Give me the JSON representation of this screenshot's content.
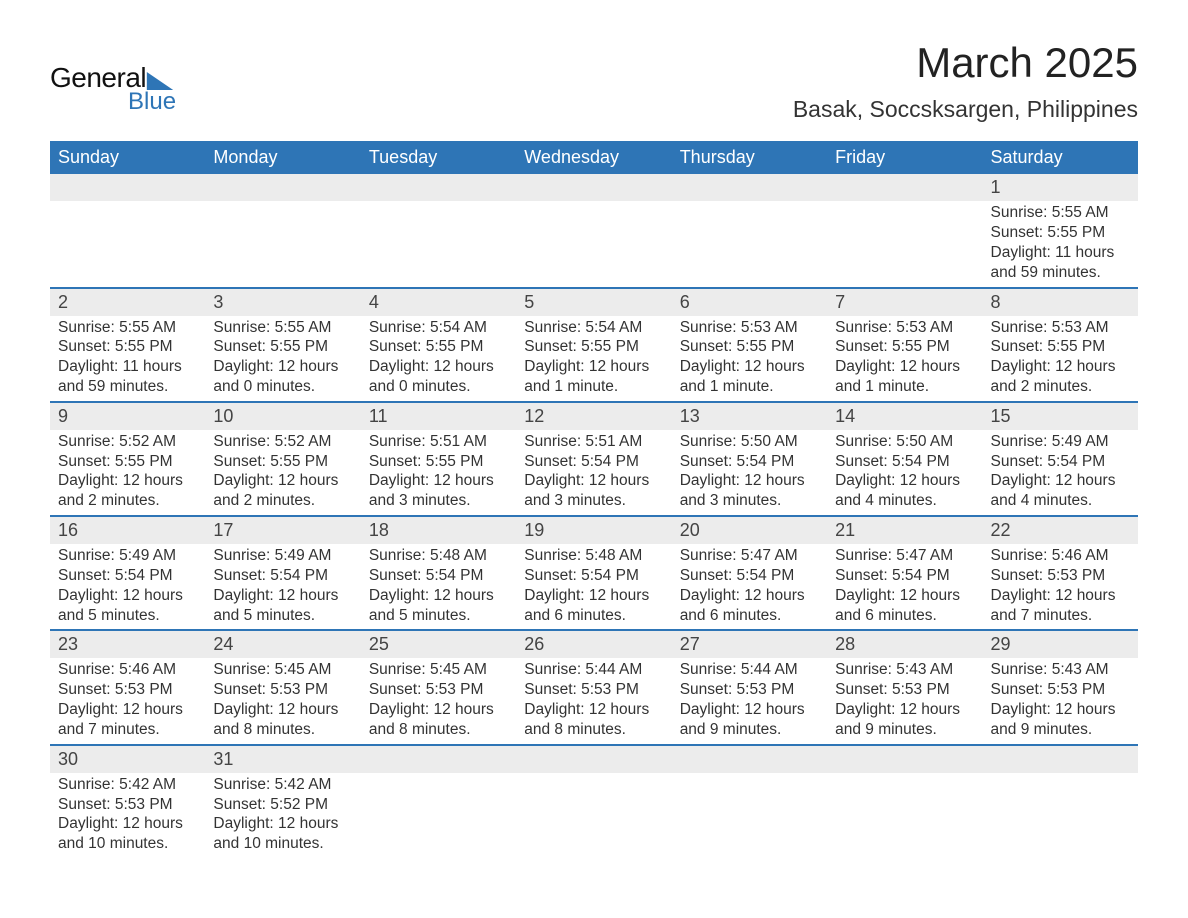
{
  "logo": {
    "top": "General",
    "bottom": "Blue"
  },
  "title": "March 2025",
  "subtitle": "Basak, Soccsksargen, Philippines",
  "colors": {
    "brand_blue": "#2e75b6",
    "header_band_bg": "#ececec",
    "text": "#333333",
    "background": "#ffffff"
  },
  "day_labels": [
    "Sunday",
    "Monday",
    "Tuesday",
    "Wednesday",
    "Thursday",
    "Friday",
    "Saturday"
  ],
  "weeks": [
    [
      null,
      null,
      null,
      null,
      null,
      null,
      {
        "n": "1",
        "sr": "Sunrise: 5:55 AM",
        "ss": "Sunset: 5:55 PM",
        "dl": "Daylight: 11 hours and 59 minutes."
      }
    ],
    [
      {
        "n": "2",
        "sr": "Sunrise: 5:55 AM",
        "ss": "Sunset: 5:55 PM",
        "dl": "Daylight: 11 hours and 59 minutes."
      },
      {
        "n": "3",
        "sr": "Sunrise: 5:55 AM",
        "ss": "Sunset: 5:55 PM",
        "dl": "Daylight: 12 hours and 0 minutes."
      },
      {
        "n": "4",
        "sr": "Sunrise: 5:54 AM",
        "ss": "Sunset: 5:55 PM",
        "dl": "Daylight: 12 hours and 0 minutes."
      },
      {
        "n": "5",
        "sr": "Sunrise: 5:54 AM",
        "ss": "Sunset: 5:55 PM",
        "dl": "Daylight: 12 hours and 1 minute."
      },
      {
        "n": "6",
        "sr": "Sunrise: 5:53 AM",
        "ss": "Sunset: 5:55 PM",
        "dl": "Daylight: 12 hours and 1 minute."
      },
      {
        "n": "7",
        "sr": "Sunrise: 5:53 AM",
        "ss": "Sunset: 5:55 PM",
        "dl": "Daylight: 12 hours and 1 minute."
      },
      {
        "n": "8",
        "sr": "Sunrise: 5:53 AM",
        "ss": "Sunset: 5:55 PM",
        "dl": "Daylight: 12 hours and 2 minutes."
      }
    ],
    [
      {
        "n": "9",
        "sr": "Sunrise: 5:52 AM",
        "ss": "Sunset: 5:55 PM",
        "dl": "Daylight: 12 hours and 2 minutes."
      },
      {
        "n": "10",
        "sr": "Sunrise: 5:52 AM",
        "ss": "Sunset: 5:55 PM",
        "dl": "Daylight: 12 hours and 2 minutes."
      },
      {
        "n": "11",
        "sr": "Sunrise: 5:51 AM",
        "ss": "Sunset: 5:55 PM",
        "dl": "Daylight: 12 hours and 3 minutes."
      },
      {
        "n": "12",
        "sr": "Sunrise: 5:51 AM",
        "ss": "Sunset: 5:54 PM",
        "dl": "Daylight: 12 hours and 3 minutes."
      },
      {
        "n": "13",
        "sr": "Sunrise: 5:50 AM",
        "ss": "Sunset: 5:54 PM",
        "dl": "Daylight: 12 hours and 3 minutes."
      },
      {
        "n": "14",
        "sr": "Sunrise: 5:50 AM",
        "ss": "Sunset: 5:54 PM",
        "dl": "Daylight: 12 hours and 4 minutes."
      },
      {
        "n": "15",
        "sr": "Sunrise: 5:49 AM",
        "ss": "Sunset: 5:54 PM",
        "dl": "Daylight: 12 hours and 4 minutes."
      }
    ],
    [
      {
        "n": "16",
        "sr": "Sunrise: 5:49 AM",
        "ss": "Sunset: 5:54 PM",
        "dl": "Daylight: 12 hours and 5 minutes."
      },
      {
        "n": "17",
        "sr": "Sunrise: 5:49 AM",
        "ss": "Sunset: 5:54 PM",
        "dl": "Daylight: 12 hours and 5 minutes."
      },
      {
        "n": "18",
        "sr": "Sunrise: 5:48 AM",
        "ss": "Sunset: 5:54 PM",
        "dl": "Daylight: 12 hours and 5 minutes."
      },
      {
        "n": "19",
        "sr": "Sunrise: 5:48 AM",
        "ss": "Sunset: 5:54 PM",
        "dl": "Daylight: 12 hours and 6 minutes."
      },
      {
        "n": "20",
        "sr": "Sunrise: 5:47 AM",
        "ss": "Sunset: 5:54 PM",
        "dl": "Daylight: 12 hours and 6 minutes."
      },
      {
        "n": "21",
        "sr": "Sunrise: 5:47 AM",
        "ss": "Sunset: 5:54 PM",
        "dl": "Daylight: 12 hours and 6 minutes."
      },
      {
        "n": "22",
        "sr": "Sunrise: 5:46 AM",
        "ss": "Sunset: 5:53 PM",
        "dl": "Daylight: 12 hours and 7 minutes."
      }
    ],
    [
      {
        "n": "23",
        "sr": "Sunrise: 5:46 AM",
        "ss": "Sunset: 5:53 PM",
        "dl": "Daylight: 12 hours and 7 minutes."
      },
      {
        "n": "24",
        "sr": "Sunrise: 5:45 AM",
        "ss": "Sunset: 5:53 PM",
        "dl": "Daylight: 12 hours and 8 minutes."
      },
      {
        "n": "25",
        "sr": "Sunrise: 5:45 AM",
        "ss": "Sunset: 5:53 PM",
        "dl": "Daylight: 12 hours and 8 minutes."
      },
      {
        "n": "26",
        "sr": "Sunrise: 5:44 AM",
        "ss": "Sunset: 5:53 PM",
        "dl": "Daylight: 12 hours and 8 minutes."
      },
      {
        "n": "27",
        "sr": "Sunrise: 5:44 AM",
        "ss": "Sunset: 5:53 PM",
        "dl": "Daylight: 12 hours and 9 minutes."
      },
      {
        "n": "28",
        "sr": "Sunrise: 5:43 AM",
        "ss": "Sunset: 5:53 PM",
        "dl": "Daylight: 12 hours and 9 minutes."
      },
      {
        "n": "29",
        "sr": "Sunrise: 5:43 AM",
        "ss": "Sunset: 5:53 PM",
        "dl": "Daylight: 12 hours and 9 minutes."
      }
    ],
    [
      {
        "n": "30",
        "sr": "Sunrise: 5:42 AM",
        "ss": "Sunset: 5:53 PM",
        "dl": "Daylight: 12 hours and 10 minutes."
      },
      {
        "n": "31",
        "sr": "Sunrise: 5:42 AM",
        "ss": "Sunset: 5:52 PM",
        "dl": "Daylight: 12 hours and 10 minutes."
      },
      null,
      null,
      null,
      null,
      null
    ]
  ]
}
